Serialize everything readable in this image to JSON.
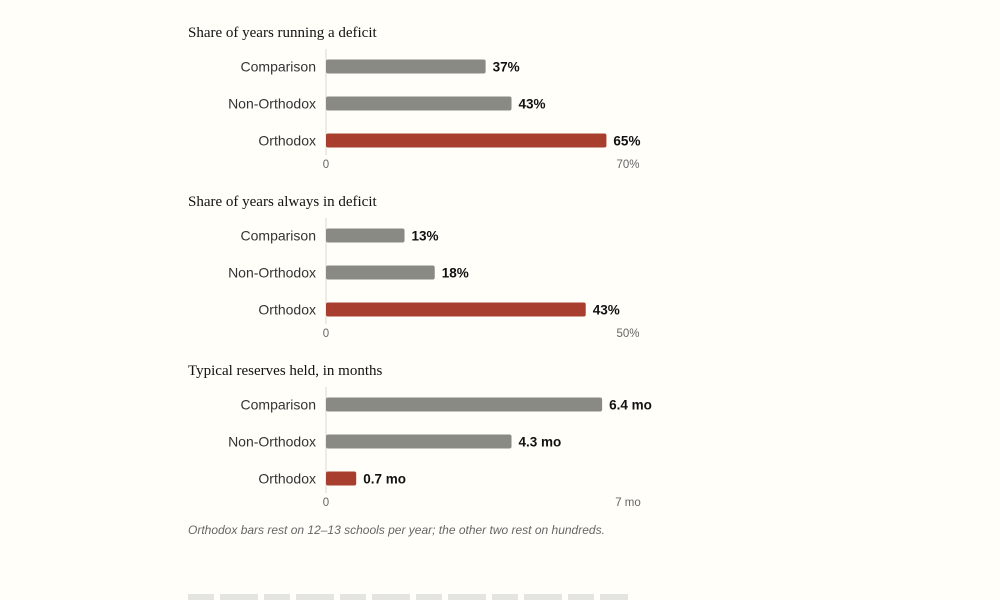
{
  "chart_data": [
    {
      "type": "bar",
      "orientation": "horizontal",
      "title": "Share of years running a deficit",
      "categories": [
        "Comparison",
        "Non-Orthodox",
        "Orthodox"
      ],
      "values": [
        37,
        43,
        65
      ],
      "value_labels": [
        "37%",
        "43%",
        "65%"
      ],
      "xlim": [
        0,
        70
      ],
      "tick_labels": [
        "0",
        "70%"
      ],
      "colors": [
        "#8a8a84",
        "#8a8a84",
        "#a83e2e"
      ],
      "grid": false
    },
    {
      "type": "bar",
      "orientation": "horizontal",
      "title": "Share of years always in deficit",
      "categories": [
        "Comparison",
        "Non-Orthodox",
        "Orthodox"
      ],
      "values": [
        13,
        18,
        43
      ],
      "value_labels": [
        "13%",
        "18%",
        "43%"
      ],
      "xlim": [
        0,
        50
      ],
      "tick_labels": [
        "0",
        "50%"
      ],
      "colors": [
        "#8a8a84",
        "#8a8a84",
        "#a83e2e"
      ],
      "grid": false
    },
    {
      "type": "bar",
      "orientation": "horizontal",
      "title": "Typical reserves held, in months",
      "categories": [
        "Comparison",
        "Non-Orthodox",
        "Orthodox"
      ],
      "values": [
        6.4,
        4.3,
        0.7
      ],
      "value_labels": [
        "6.4 mo",
        "4.3 mo",
        "0.7 mo"
      ],
      "xlim": [
        0,
        7
      ],
      "tick_labels": [
        "0",
        "7 mo"
      ],
      "colors": [
        "#8a8a84",
        "#8a8a84",
        "#a83e2e"
      ],
      "grid": false
    }
  ],
  "note": "Orthodox bars rest on 12–13 schools per year; the other two rest on hundreds."
}
